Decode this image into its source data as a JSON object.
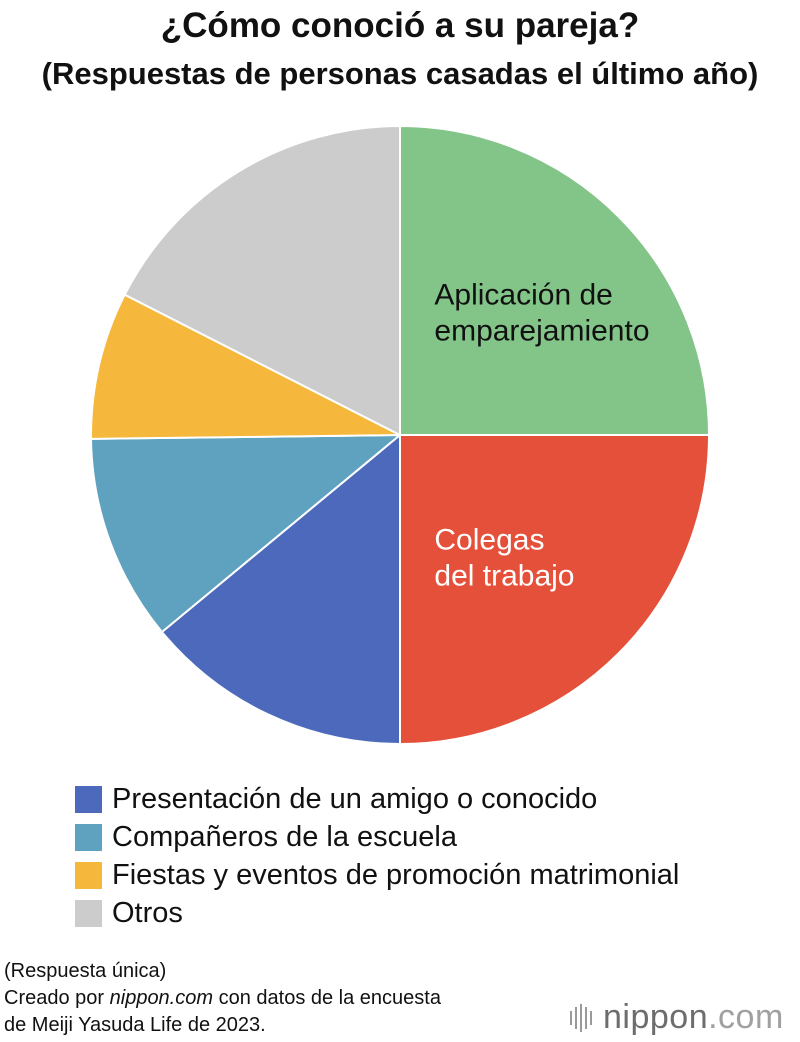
{
  "title": "¿Cómo conoció a su pareja?",
  "subtitle": "(Respuestas de personas casadas el último año)",
  "chart_data": {
    "type": "pie",
    "title": "¿Cómo conoció a su pareja?",
    "subtitle": "(Respuestas de personas casadas el último año)",
    "unit": "%",
    "start": "12 o'clock, clockwise",
    "slices": [
      {
        "name": "Aplicación de emparejamiento",
        "value": 25.0,
        "color": "#83c588",
        "label_lines": [
          "Aplicación de",
          "emparejamiento"
        ],
        "label_color": "#111111"
      },
      {
        "name": "Colegas del trabajo",
        "value": 25.0,
        "color": "#e5503a",
        "label_lines": [
          "Colegas",
          "del trabajo"
        ],
        "label_color": "#ffffff"
      },
      {
        "name": "Presentación de un amigo o conocido",
        "value": 14.0,
        "color": "#4c69bb",
        "label_lines": [],
        "label_color": ""
      },
      {
        "name": "Compañeros de la escuela",
        "value": 10.8,
        "color": "#5fa2bf",
        "label_lines": [],
        "label_color": ""
      },
      {
        "name": "Fiestas y eventos de promoción matrimonial",
        "value": 7.7,
        "color": "#f5b73c",
        "label_lines": [],
        "label_color": ""
      },
      {
        "name": "Otros",
        "value": 17.5,
        "color": "#cccccc",
        "label_lines": [],
        "label_color": ""
      }
    ],
    "legend": {
      "placement": "bottom",
      "entries": [
        {
          "name": "Presentación de un amigo o conocido",
          "color": "#4c69bb"
        },
        {
          "name": "Compañeros de la escuela",
          "color": "#5fa2bf"
        },
        {
          "name": "Fiestas y eventos de promoción matrimonial",
          "color": "#f5b73c"
        },
        {
          "name": "Otros",
          "color": "#cccccc"
        }
      ]
    }
  },
  "notes": {
    "line1": "(Respuesta única)",
    "line2_prefix": "Creado por ",
    "line2_site": "nippon.com",
    "line2_suffix": " con datos de la encuesta",
    "line3": "de Meiji Yasuda Life de 2023."
  },
  "brand": {
    "name": "nippon",
    "tld": ".com"
  }
}
